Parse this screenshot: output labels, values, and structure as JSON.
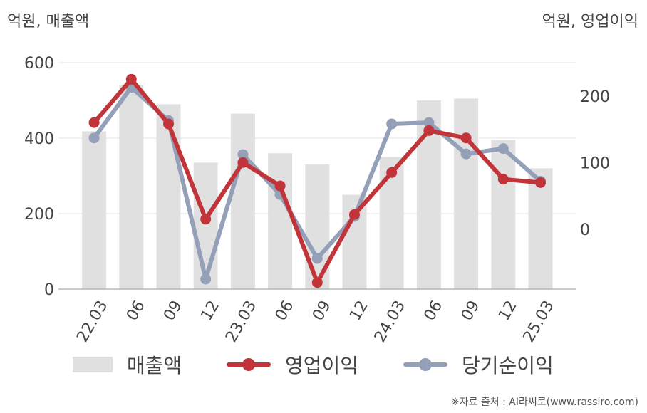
{
  "labels": {
    "left_unit": "억원, 매출액",
    "right_unit": "억원, 영업이익",
    "source": "※자료 출처 : AI라씨로(www.rassiro.com)"
  },
  "colors": {
    "revenue": "#e0e0e0",
    "operating_profit": "#c0343a",
    "net_income": "#94a0b8"
  },
  "chart_data": {
    "type": "bar",
    "categories": [
      "22.03",
      "06",
      "09",
      "12",
      "23.03",
      "06",
      "09",
      "12",
      "24.03",
      "06",
      "09",
      "12",
      "25.03"
    ],
    "y_left": {
      "label": "억원, 매출액",
      "ticks": [
        0,
        200,
        400,
        600
      ],
      "range": [
        0,
        600
      ]
    },
    "y_right": {
      "label": "억원, 영업이익",
      "ticks": [
        0,
        100,
        200
      ],
      "range": [
        -90,
        250
      ]
    },
    "grid": true,
    "legend_position": "bottom",
    "series": [
      {
        "name": "매출액",
        "type": "bar",
        "axis": "left",
        "values": [
          418,
          540,
          490,
          335,
          465,
          360,
          330,
          250,
          350,
          500,
          505,
          395,
          320
        ]
      },
      {
        "name": "영업이익",
        "type": "line",
        "axis": "right",
        "values": [
          160,
          225,
          158,
          15,
          100,
          65,
          -80,
          22,
          85,
          148,
          137,
          75,
          70
        ]
      },
      {
        "name": "당기순이익",
        "type": "line",
        "axis": "right",
        "values": [
          137,
          213,
          163,
          -75,
          112,
          52,
          -44,
          19,
          158,
          160,
          113,
          121,
          72
        ]
      }
    ]
  }
}
